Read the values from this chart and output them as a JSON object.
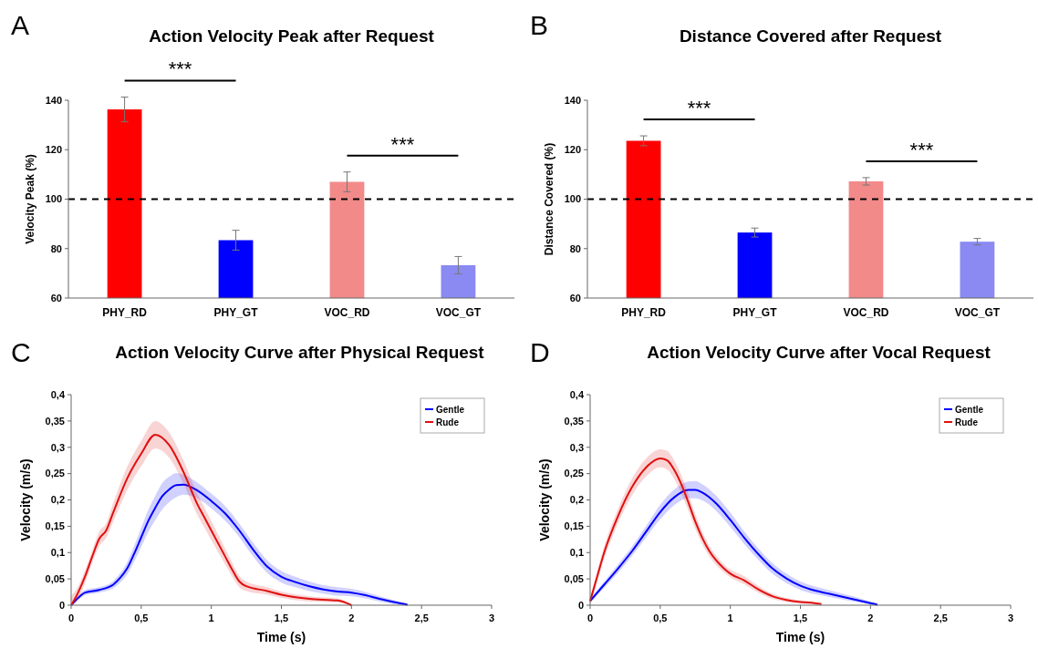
{
  "chart_data": [
    {
      "type": "bar",
      "title": "Action Velocity Peak after Request",
      "ylabel": "Velocity Peak (%)",
      "categories": [
        "PHY_RD",
        "PHY_GT",
        "VOC_RD",
        "VOC_GT"
      ],
      "values": [
        136.3,
        83.4,
        107,
        73.3
      ],
      "errors": [
        5,
        4,
        4,
        3.5
      ],
      "colors": [
        "#ff0000",
        "#0000ff",
        "#f28a8a",
        "#8a8af2"
      ],
      "ylim": [
        60,
        140
      ],
      "yticks": [
        60,
        80,
        100,
        120,
        140
      ],
      "ref_lines": [
        {
          "axis": "y",
          "value": 100,
          "line_style": "dashed",
          "color": "#000000"
        }
      ],
      "annotations": [
        "A",
        "***",
        "***"
      ]
    },
    {
      "type": "bar",
      "title": "Distance Covered after Request",
      "ylabel": "Distance Covered (%)",
      "categories": [
        "PHY_RD",
        "PHY_GT",
        "VOC_RD",
        "VOC_GT"
      ],
      "values": [
        123.6,
        86.5,
        107.2,
        82.8
      ],
      "errors": [
        2,
        1.8,
        1.5,
        1.3
      ],
      "colors": [
        "#ff0000",
        "#0000ff",
        "#f28a8a",
        "#8a8af2"
      ],
      "ylim": [
        60,
        140
      ],
      "yticks": [
        60,
        80,
        100,
        120,
        140
      ],
      "ref_lines": [
        {
          "axis": "y",
          "value": 100,
          "line_style": "dashed",
          "color": "#000000"
        }
      ],
      "annotations": [
        "B",
        "***",
        "***"
      ]
    },
    {
      "type": "line",
      "title": "Action Velocity Curve after Physical Request",
      "xlabel": "Time (s)",
      "ylabel": "Velocity (m/s)",
      "legend": "top right",
      "xlim": [
        0,
        3
      ],
      "xticks": [
        0,
        {
          "value": 0.5,
          "label": "0,5"
        },
        1,
        {
          "value": 1.5,
          "label": "1,5"
        },
        2,
        {
          "value": 2.5,
          "label": "2,5"
        },
        3
      ],
      "ylim": [
        0,
        0.4
      ],
      "yticks": [
        0,
        {
          "value": 0.05,
          "label": "0,05"
        },
        {
          "value": 0.1,
          "label": "0,1"
        },
        {
          "value": 0.15,
          "label": "0,15"
        },
        {
          "value": 0.2,
          "label": "0,2"
        },
        {
          "value": 0.25,
          "label": "0,25"
        },
        {
          "value": 0.3,
          "label": "0,3"
        },
        {
          "value": 0.35,
          "label": "0,35"
        },
        {
          "value": 0.4,
          "label": "0,4"
        }
      ],
      "annotations": [
        "C"
      ],
      "series": [
        {
          "name": "Gentle",
          "color": "#0000ff",
          "x": [
            0,
            0.05,
            0.1,
            0.2,
            0.3,
            0.35,
            0.4,
            0.45,
            0.5,
            0.55,
            0.6,
            0.65,
            0.7,
            0.75,
            0.8,
            0.9,
            1,
            1.1,
            1.2,
            1.3,
            1.4,
            1.5,
            1.6,
            1.7,
            1.8,
            1.9,
            2,
            2.1,
            2.2,
            2.3,
            2.4
          ],
          "values": [
            0,
            0.014,
            0.024,
            0.029,
            0.039,
            0.052,
            0.07,
            0.098,
            0.129,
            0.16,
            0.185,
            0.207,
            0.22,
            0.228,
            0.229,
            0.218,
            0.198,
            0.174,
            0.142,
            0.105,
            0.073,
            0.054,
            0.044,
            0.036,
            0.03,
            0.026,
            0.024,
            0.019,
            0.012,
            0.006,
            0.001
          ],
          "lower": [
            0,
            0.01,
            0.019,
            0.024,
            0.032,
            0.043,
            0.058,
            0.083,
            0.111,
            0.139,
            0.162,
            0.182,
            0.196,
            0.205,
            0.21,
            0.203,
            0.184,
            0.16,
            0.129,
            0.092,
            0.061,
            0.043,
            0.034,
            0.027,
            0.022,
            0.018,
            0.017,
            0.013,
            0.007,
            0.002,
            0
          ],
          "upper": [
            0.003,
            0.018,
            0.029,
            0.034,
            0.046,
            0.061,
            0.082,
            0.113,
            0.147,
            0.181,
            0.208,
            0.232,
            0.244,
            0.251,
            0.248,
            0.233,
            0.212,
            0.188,
            0.155,
            0.118,
            0.085,
            0.065,
            0.054,
            0.045,
            0.038,
            0.034,
            0.031,
            0.025,
            0.017,
            0.01,
            0.003
          ]
        },
        {
          "name": "Rude",
          "color": "#e01010",
          "x": [
            0,
            0.05,
            0.1,
            0.15,
            0.2,
            0.25,
            0.3,
            0.4,
            0.5,
            0.6,
            0.7,
            0.8,
            0.9,
            0.95,
            1,
            1.1,
            1.15,
            1.2,
            1.25,
            1.4,
            1.5,
            1.7,
            1.9,
            2
          ],
          "values": [
            0,
            0.024,
            0.055,
            0.092,
            0.126,
            0.142,
            0.176,
            0.241,
            0.288,
            0.324,
            0.304,
            0.254,
            0.192,
            0.167,
            0.142,
            0.092,
            0.067,
            0.045,
            0.036,
            0.027,
            0.02,
            0.012,
            0.009,
            0
          ],
          "lower": [
            0,
            0.012,
            0.043,
            0.08,
            0.112,
            0.128,
            0.158,
            0.219,
            0.264,
            0.298,
            0.28,
            0.232,
            0.172,
            0.148,
            0.124,
            0.077,
            0.054,
            0.034,
            0.027,
            0.02,
            0.014,
            0.007,
            0.005,
            0
          ],
          "upper": [
            0.018,
            0.036,
            0.067,
            0.104,
            0.14,
            0.156,
            0.194,
            0.263,
            0.312,
            0.35,
            0.328,
            0.276,
            0.212,
            0.186,
            0.16,
            0.107,
            0.08,
            0.056,
            0.045,
            0.034,
            0.026,
            0.017,
            0.013,
            0.002
          ]
        }
      ]
    },
    {
      "type": "line",
      "title": "Action Velocity Curve after Vocal Request",
      "xlabel": "Time (s)",
      "ylabel": "Velocity (m/s)",
      "legend": "top right",
      "xlim": [
        0,
        3
      ],
      "xticks": [
        0,
        {
          "value": 0.5,
          "label": "0,5"
        },
        1,
        {
          "value": 1.5,
          "label": "1,5"
        },
        2,
        {
          "value": 2.5,
          "label": "2,5"
        },
        3
      ],
      "ylim": [
        0,
        0.4
      ],
      "yticks": [
        0,
        {
          "value": 0.05,
          "label": "0,05"
        },
        {
          "value": 0.1,
          "label": "0,1"
        },
        {
          "value": 0.15,
          "label": "0,15"
        },
        {
          "value": 0.2,
          "label": "0,2"
        },
        {
          "value": 0.25,
          "label": "0,25"
        },
        {
          "value": 0.3,
          "label": "0,3"
        },
        {
          "value": 0.35,
          "label": "0,35"
        },
        {
          "value": 0.4,
          "label": "0,4"
        }
      ],
      "annotations": [
        "D"
      ],
      "series": [
        {
          "name": "Gentle",
          "color": "#0000ff",
          "x": [
            0,
            0.1,
            0.2,
            0.3,
            0.4,
            0.5,
            0.6,
            0.7,
            0.75,
            0.8,
            0.9,
            1,
            1.1,
            1.2,
            1.3,
            1.4,
            1.5,
            1.6,
            1.7,
            1.8,
            1.9,
            2,
            2.05
          ],
          "values": [
            0.008,
            0.039,
            0.07,
            0.103,
            0.14,
            0.177,
            0.205,
            0.219,
            0.219,
            0.214,
            0.193,
            0.162,
            0.128,
            0.097,
            0.07,
            0.051,
            0.037,
            0.028,
            0.022,
            0.016,
            0.01,
            0.004,
            0.001
          ],
          "lower": [
            0.004,
            0.033,
            0.062,
            0.094,
            0.129,
            0.163,
            0.19,
            0.203,
            0.203,
            0.199,
            0.179,
            0.149,
            0.116,
            0.086,
            0.06,
            0.042,
            0.029,
            0.021,
            0.016,
            0.011,
            0.006,
            0.001,
            0
          ],
          "upper": [
            0.012,
            0.045,
            0.078,
            0.112,
            0.151,
            0.191,
            0.22,
            0.235,
            0.236,
            0.23,
            0.208,
            0.176,
            0.14,
            0.108,
            0.08,
            0.06,
            0.045,
            0.036,
            0.029,
            0.022,
            0.015,
            0.007,
            0.002
          ]
        },
        {
          "name": "Rude",
          "color": "#e01010",
          "x": [
            0,
            0.05,
            0.1,
            0.2,
            0.3,
            0.4,
            0.5,
            0.55,
            0.6,
            0.65,
            0.7,
            0.75,
            0.8,
            0.85,
            0.9,
            0.95,
            1,
            1.1,
            1.2,
            1.3,
            1.4,
            1.5,
            1.6,
            1.65
          ],
          "values": [
            0.008,
            0.054,
            0.1,
            0.17,
            0.225,
            0.262,
            0.279,
            0.275,
            0.257,
            0.23,
            0.196,
            0.159,
            0.128,
            0.103,
            0.085,
            0.071,
            0.06,
            0.047,
            0.03,
            0.017,
            0.01,
            0.006,
            0.004,
            0.002
          ],
          "lower": [
            0.002,
            0.044,
            0.088,
            0.156,
            0.209,
            0.245,
            0.262,
            0.258,
            0.24,
            0.213,
            0.18,
            0.145,
            0.116,
            0.093,
            0.076,
            0.063,
            0.053,
            0.04,
            0.024,
            0.012,
            0.006,
            0.003,
            0.002,
            0.001
          ],
          "upper": [
            0.014,
            0.064,
            0.112,
            0.184,
            0.241,
            0.279,
            0.296,
            0.293,
            0.275,
            0.247,
            0.212,
            0.173,
            0.14,
            0.113,
            0.094,
            0.079,
            0.068,
            0.055,
            0.037,
            0.022,
            0.014,
            0.009,
            0.006,
            0.003
          ]
        }
      ]
    }
  ]
}
